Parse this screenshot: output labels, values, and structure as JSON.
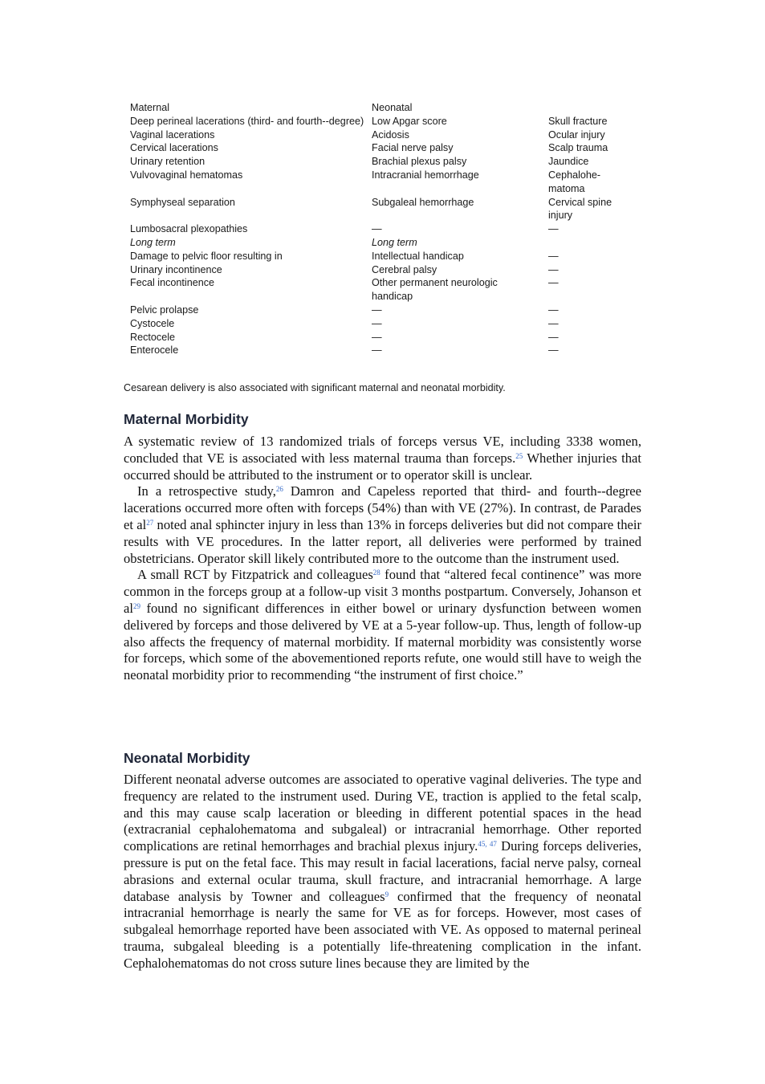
{
  "table": {
    "rows": [
      [
        "Maternal",
        "Neonatal",
        ""
      ],
      [
        "Deep perineal lacerations (third- and fourth--degree)",
        "Low Apgar score",
        "Skull fracture"
      ],
      [
        "Vaginal lacerations",
        "Acidosis",
        "Ocular injury"
      ],
      [
        "Cervical lacerations",
        "Facial nerve palsy",
        "Scalp trauma"
      ],
      [
        "Urinary retention",
        "Brachial plexus palsy",
        "Jaundice"
      ],
      [
        "Vulvovaginal hematomas",
        "Intracranial hemorrhage",
        "Cephalohe-matoma"
      ],
      [
        "Symphyseal separation",
        "Subgaleal hemorrhage",
        "Cervical spine injury"
      ],
      [
        "Lumbosacral plexopathies",
        "—",
        "—"
      ],
      [
        "Long term",
        "Long term",
        ""
      ],
      [
        "Damage to pelvic floor resulting in",
        "Intellectual handicap",
        "—"
      ],
      [
        "Urinary incontinence",
        "Cerebral palsy",
        "—"
      ],
      [
        "Fecal incontinence",
        "Other permanent neurologic handicap",
        "—"
      ],
      [
        "Pelvic prolapse",
        "—",
        "—"
      ],
      [
        "Cystocele",
        "—",
        "—"
      ],
      [
        "Rectocele",
        "—",
        "—"
      ],
      [
        "Enterocele",
        "—",
        "—"
      ]
    ],
    "caption": "Cesarean delivery is also associated with significant maternal and neonatal morbidity."
  },
  "maternal": {
    "heading": "Maternal Morbidity",
    "p1a": "A systematic review of 13 randomized trials of forceps versus VE, including 3338 women, concluded that VE is associated with less maternal trauma than forceps.",
    "r25": "25",
    "p1b": " Whether injuries that occurred should be attributed to the instrument or to operator skill is unclear.",
    "p2a": "In a retrospective study,",
    "r26": "26",
    "p2b": " Damron and Capeless reported that third- and fourth--degree lacerations occurred more often with forceps (54%) than with VE (27%). In contrast, de Parades et al",
    "r27": "27",
    "p2c": " noted anal sphincter injury in less than 13% in forceps deliveries but did not compare their results with VE procedures. In the latter report, all deliveries were performed by trained obstetricians. Operator skill likely contributed more to the outcome than the instrument used.",
    "p3a": "A small RCT by Fitzpatrick and colleagues",
    "r28": "28",
    "p3b": " found that “altered fecal continence” was more common in the forceps group at a follow-up visit 3 months postpartum. Conversely, Johanson et al",
    "r29": "29",
    "p3c": " found no significant differences in either bowel or urinary dysfunction between women delivered by forceps and those delivered by VE at a 5-year follow-up. Thus, length of follow-up also affects the frequency of maternal morbidity. If maternal morbidity was consistently worse for forceps, which some of the abovementioned reports refute, one would still have to weigh the neonatal morbidity prior to recommending “the instrument of first choice.”"
  },
  "neonatal": {
    "heading": "Neonatal Morbidity",
    "p1a": "Different neonatal adverse outcomes are associated to operative vaginal deliveries. The type and frequency are related to the instrument used. During VE, traction is applied to the fetal scalp, and this may cause scalp laceration or bleeding in different potential spaces in the head (extracranial cephalohematoma and subgaleal) or intracranial hemorrhage. Other reported complications are retinal hemorrhages and brachial plexus injury.",
    "r45": "45, 47",
    "p1b": " During forceps deliveries, pressure is put on the fetal face. This may result in facial lacerations, facial nerve palsy, corneal abrasions and external ocular trauma, skull fracture, and intracranial hemorrhage. A large database analysis by Towner and colleagues",
    "r9": "9",
    "p1c": " confirmed that the frequency of neonatal intracranial hemorrhage is nearly the same for VE as for forceps. However, most cases of subgaleal hemorrhage reported have been associated with VE. As opposed to maternal perineal trauma, subgaleal bleeding is a potentially life-threatening complication in the infant. Cephalohematomas do not cross suture lines because they are limited by the"
  }
}
